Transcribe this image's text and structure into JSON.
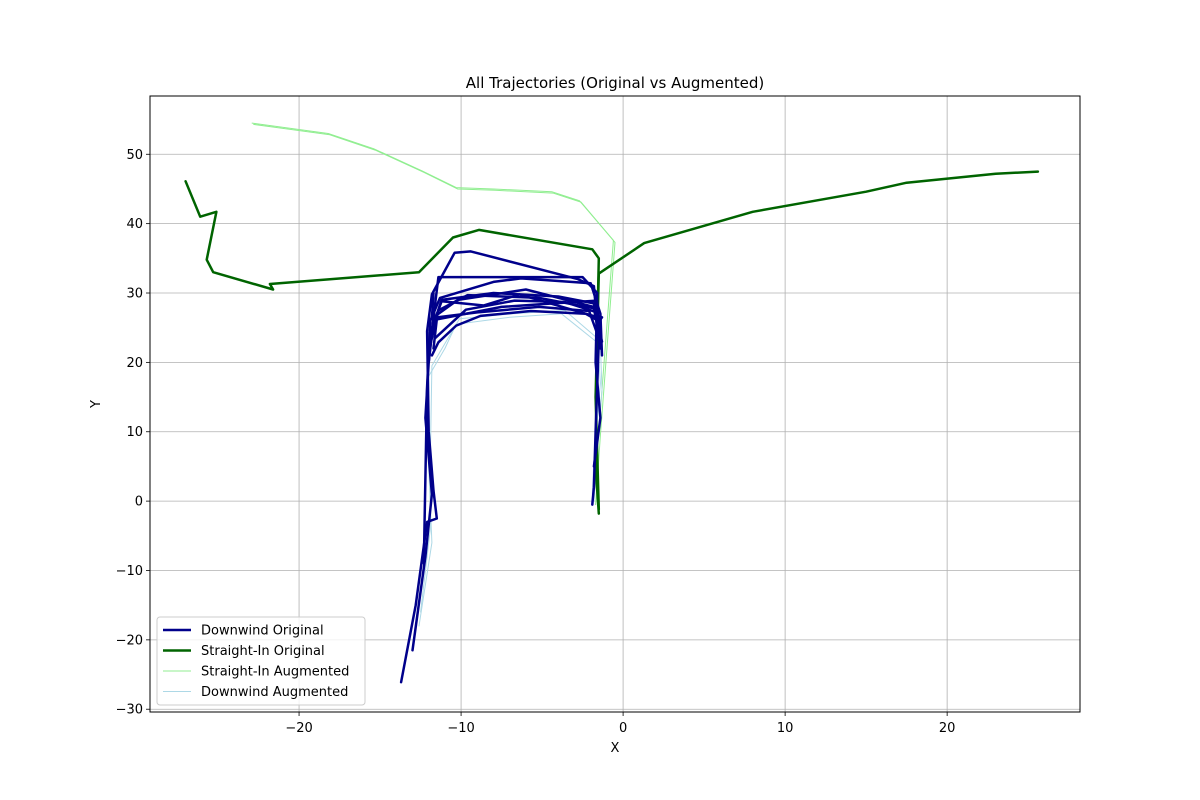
{
  "chart_data": {
    "type": "line",
    "title": "All Trajectories (Original vs Augmented)",
    "xlabel": "X",
    "ylabel": "Y",
    "xlim": [
      -29.2,
      28.2
    ],
    "ylim": [
      -30.4,
      58.4
    ],
    "xticks": [
      -20,
      -10,
      0,
      10,
      20
    ],
    "yticks": [
      -30,
      -20,
      -10,
      0,
      10,
      20,
      30,
      40,
      50
    ],
    "grid": true,
    "legend_position": "lower-left",
    "legend": [
      {
        "label": "Downwind Original",
        "color": "#00008b",
        "width": 2.5
      },
      {
        "label": "Straight-In Original",
        "color": "#006400",
        "width": 2.5
      },
      {
        "label": "Straight-In Augmented",
        "color": "#90ee90",
        "width": 1
      },
      {
        "label": "Downwind Augmented",
        "color": "#add8e6",
        "width": 1
      }
    ],
    "series": [
      {
        "group": "Straight-In Augmented",
        "color": "#90ee90",
        "width": 1,
        "x": [
          -22.9,
          -18.2,
          -15.4,
          -12.4,
          -10.3,
          -8.0,
          -4.4,
          -2.7,
          -0.6,
          -1.5,
          -1.8
        ],
        "y": [
          54.5,
          53.0,
          50.8,
          47.6,
          45.2,
          45.0,
          44.6,
          43.3,
          37.6,
          10.0,
          0.0
        ]
      },
      {
        "group": "Straight-In Augmented",
        "color": "#90ee90",
        "width": 1,
        "x": [
          -22.8,
          -18.1,
          -15.3,
          -12.3,
          -10.2,
          -7.9,
          -4.3,
          -2.6,
          -0.5,
          -1.4,
          -1.7
        ],
        "y": [
          54.3,
          52.8,
          50.6,
          47.4,
          45.0,
          44.8,
          44.4,
          43.1,
          37.3,
          9.5,
          -0.5
        ]
      },
      {
        "group": "Downwind Augmented",
        "color": "#add8e6",
        "width": 1,
        "x": [
          -12.6,
          -11.8,
          -12.0,
          -12.0,
          -11.0,
          -10.3,
          -7.0,
          -3.8,
          -1.4,
          -1.3,
          -1.7,
          -1.8
        ],
        "y": [
          -18.0,
          -6.0,
          5.0,
          18.0,
          22.0,
          25.5,
          26.5,
          27.0,
          22.5,
          16.0,
          5.0,
          0.0
        ]
      },
      {
        "group": "Downwind Augmented",
        "color": "#add8e6",
        "width": 1,
        "x": [
          -12.5,
          -11.9,
          -11.9,
          -11.8,
          -10.8,
          -10.1,
          -6.8,
          -3.6,
          -1.6,
          -1.4,
          -1.8,
          -1.9
        ],
        "y": [
          -16.0,
          -4.0,
          6.0,
          19.5,
          23.5,
          26.3,
          27.0,
          27.5,
          23.5,
          17.0,
          6.0,
          1.0
        ]
      },
      {
        "group": "Straight-In Original",
        "color": "#006400",
        "width": 2.5,
        "x": [
          -27.0,
          -26.1,
          -25.1,
          -25.7,
          -25.3,
          -21.6,
          -21.8,
          -12.6,
          -10.5,
          -8.9,
          -1.9,
          -1.5,
          -1.6,
          -1.7,
          -1.5
        ],
        "y": [
          46.1,
          41.0,
          41.7,
          34.8,
          33.0,
          30.5,
          31.3,
          33.0,
          38.0,
          39.1,
          36.3,
          35.0,
          24.0,
          5.0,
          -1.8
        ]
      },
      {
        "group": "Straight-In Original",
        "color": "#006400",
        "width": 2.5,
        "x": [
          -1.5,
          -1.7,
          -1.5,
          1.3,
          8.0,
          15.0,
          17.5,
          23.0,
          25.6
        ],
        "y": [
          -1.2,
          15.0,
          32.8,
          37.2,
          41.7,
          44.6,
          45.9,
          47.2,
          47.5
        ]
      },
      {
        "group": "Downwind Original",
        "color": "#00008b",
        "width": 2.5,
        "x": [
          -13.7,
          -12.8,
          -12.1,
          -11.5,
          -11.7,
          -12.0,
          -12.1,
          -11.8,
          -10.4,
          -9.4,
          -2.8,
          -1.8,
          -1.5,
          -1.7,
          -1.8,
          -1.9
        ],
        "y": [
          -26.1,
          -15.0,
          -3.0,
          -2.5,
          1.5,
          10.0,
          24.5,
          29.8,
          35.8,
          36.0,
          32.0,
          31.0,
          23.0,
          10.0,
          2.0,
          -0.5
        ]
      },
      {
        "group": "Downwind Original",
        "color": "#00008b",
        "width": 2.5,
        "x": [
          -13.0,
          -12.2,
          -11.8,
          -12.2,
          -12.0,
          -11.6,
          -11.4,
          -6.0,
          -2.5,
          -1.6,
          -1.7,
          -1.4,
          -1.8
        ],
        "y": [
          -21.5,
          -8.0,
          1.0,
          12.0,
          20.0,
          28.5,
          32.3,
          32.3,
          32.3,
          30.0,
          20.0,
          12.0,
          5.0
        ]
      },
      {
        "group": "Downwind Original",
        "color": "#00008b",
        "width": 2.5,
        "x": [
          -12.3,
          -12.1,
          -11.9,
          -11.3,
          -8.0,
          -6.3,
          -2.0,
          -1.4,
          -1.3
        ],
        "y": [
          -9.0,
          16.5,
          26.0,
          29.3,
          31.6,
          32.1,
          31.4,
          27.0,
          21.0
        ]
      },
      {
        "group": "Downwind Original",
        "color": "#00008b",
        "width": 2.5,
        "x": [
          -12.0,
          -11.7,
          -10.2,
          -6.0,
          -1.8,
          -1.4
        ],
        "y": [
          20.0,
          26.5,
          29.0,
          30.5,
          28.0,
          26.0
        ]
      },
      {
        "group": "Downwind Original",
        "color": "#00008b",
        "width": 2.5,
        "x": [
          -11.9,
          -11.4,
          -9.6,
          -5.2,
          -1.8,
          -1.5
        ],
        "y": [
          22.5,
          27.5,
          29.7,
          29.3,
          27.8,
          24.0
        ]
      },
      {
        "group": "Downwind Original",
        "color": "#00008b",
        "width": 2.5,
        "x": [
          -11.8,
          -11.2,
          -8.6,
          -6.4,
          -1.7,
          -1.3
        ],
        "y": [
          25.0,
          28.8,
          28.2,
          29.8,
          26.6,
          23.0
        ]
      },
      {
        "group": "Downwind Original",
        "color": "#00008b",
        "width": 2.5,
        "x": [
          -11.7,
          -11.5,
          -7.5,
          -4.3,
          -1.6,
          -1.4
        ],
        "y": [
          22.0,
          26.2,
          28.0,
          28.5,
          28.9,
          22.0
        ]
      },
      {
        "group": "Downwind Original",
        "color": "#00008b",
        "width": 2.5,
        "x": [
          -11.6,
          -9.7,
          -6.7,
          -3.6,
          -1.6,
          -1.5
        ],
        "y": [
          23.5,
          27.6,
          28.9,
          28.7,
          27.2,
          25.0
        ]
      },
      {
        "group": "Downwind Original",
        "color": "#00008b",
        "width": 2.5,
        "x": [
          -11.7,
          -11.8,
          -9.0,
          -5.2,
          -2.1,
          -1.5
        ],
        "y": [
          30.0,
          26.4,
          27.2,
          28.0,
          27.4,
          23.5
        ]
      },
      {
        "group": "Downwind Original",
        "color": "#00008b",
        "width": 2.5,
        "x": [
          -11.9,
          -11.2,
          -8.0,
          -4.0,
          -1.8,
          -1.6,
          -1.3
        ],
        "y": [
          24.0,
          29.0,
          30.0,
          29.5,
          28.5,
          25.5,
          26.5
        ]
      },
      {
        "group": "Downwind Original",
        "color": "#00008b",
        "width": 2.5,
        "x": [
          -11.8,
          -11.4,
          -10.3,
          -8.8,
          -5.7,
          -2.3,
          -1.4
        ],
        "y": [
          21.0,
          22.9,
          25.3,
          26.7,
          27.4,
          27.0,
          25.8
        ]
      }
    ]
  }
}
